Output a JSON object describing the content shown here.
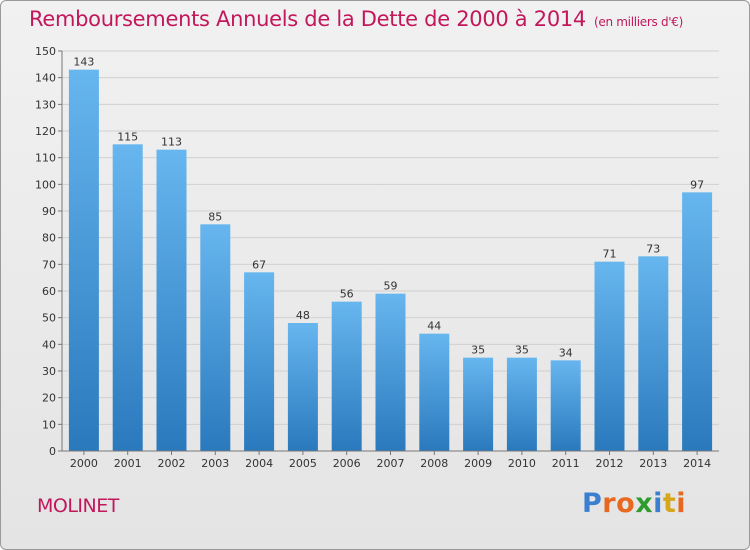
{
  "title": "Remboursements Annuels de la Dette de 2000 à 2014",
  "subtitle": "(en milliers d'€)",
  "town": "MOLINET",
  "logo": {
    "text": "Proxiti",
    "colors": [
      "#3a7fd0",
      "#e8681f",
      "#e8681f",
      "#2e9d2e",
      "#3a7fd0",
      "#d6a71c",
      "#e8681f"
    ]
  },
  "colors": {
    "bar_top": "#67b6ef",
    "bar_bottom": "#2a79bd",
    "axis_text": "#333333",
    "grid": "#d0d0d0",
    "accent": "#c2185b"
  },
  "chart_data": {
    "type": "bar",
    "categories": [
      "2000",
      "2001",
      "2002",
      "2003",
      "2004",
      "2005",
      "2006",
      "2007",
      "2008",
      "2009",
      "2010",
      "2011",
      "2012",
      "2013",
      "2014"
    ],
    "values": [
      143,
      115,
      113,
      85,
      67,
      48,
      56,
      59,
      44,
      35,
      35,
      34,
      71,
      73,
      97
    ],
    "ylim": [
      0,
      150
    ],
    "yticks": [
      0,
      10,
      20,
      30,
      40,
      50,
      60,
      70,
      80,
      90,
      100,
      110,
      120,
      130,
      140,
      150
    ],
    "grid": true,
    "data_labels": true
  }
}
